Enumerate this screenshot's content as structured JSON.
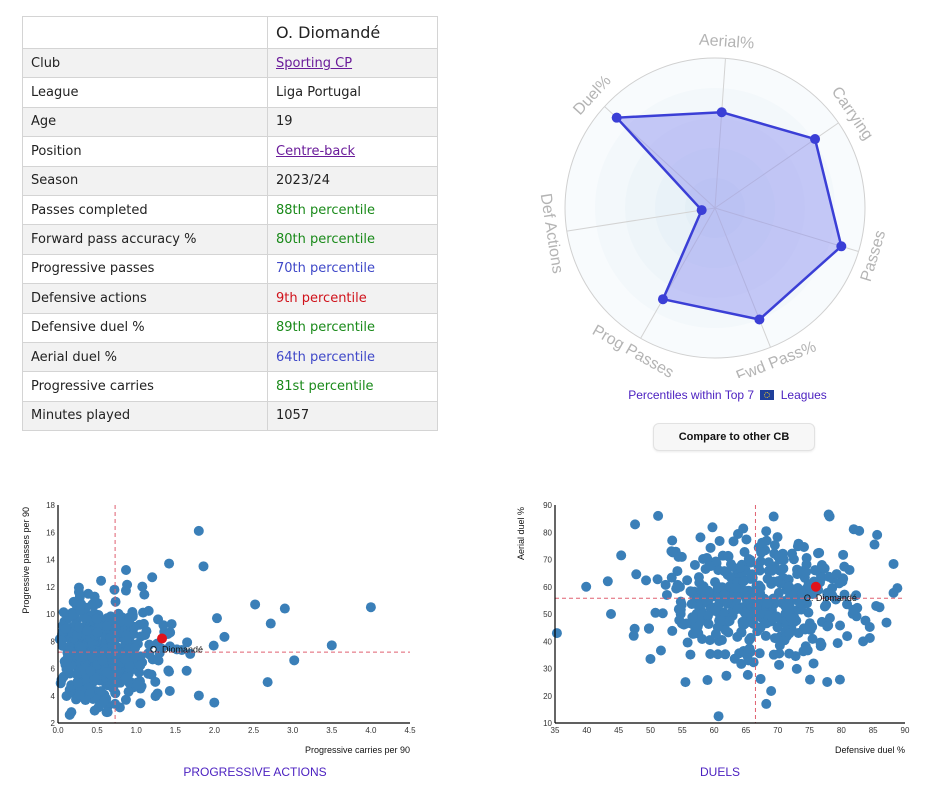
{
  "profile": {
    "player_name": "O. Diomandé",
    "rows": [
      {
        "label": "Club",
        "value": "Sporting CP",
        "type": "link",
        "color": ""
      },
      {
        "label": "League",
        "value": "Liga Portugal",
        "type": "text",
        "color": ""
      },
      {
        "label": "Age",
        "value": "19",
        "type": "text",
        "color": ""
      },
      {
        "label": "Position",
        "value": "Centre-back",
        "type": "link",
        "color": ""
      },
      {
        "label": "Season",
        "value": "2023/24",
        "type": "text",
        "color": ""
      },
      {
        "label": "Passes completed",
        "value": "88th percentile",
        "type": "text",
        "color": "#1a8a1a"
      },
      {
        "label": "Forward pass accuracy %",
        "value": "80th percentile",
        "type": "text",
        "color": "#1a8a1a"
      },
      {
        "label": "Progressive passes",
        "value": "70th percentile",
        "type": "text",
        "color": "#3f48c8"
      },
      {
        "label": "Defensive actions",
        "value": "9th percentile",
        "type": "text",
        "color": "#d0121b"
      },
      {
        "label": "Defensive duel %",
        "value": "89th percentile",
        "type": "text",
        "color": "#1a8a1a"
      },
      {
        "label": "Aerial duel %",
        "value": "64th percentile",
        "type": "text",
        "color": "#3f48c8"
      },
      {
        "label": "Progressive carries",
        "value": "81st percentile",
        "type": "text",
        "color": "#1a8a1a"
      },
      {
        "label": "Minutes played",
        "value": "1057",
        "type": "text",
        "color": ""
      }
    ]
  },
  "radar_caption": {
    "prefix": "Percentiles within Top 7",
    "flag": "eu-flag-icon",
    "suffix": "Leagues"
  },
  "compare_button": "Compare to other CB",
  "colors": {
    "radar_fill": "#8a8cf0",
    "radar_line": "#3b3fd6",
    "scatter_point": "#3a7fb8",
    "highlight_point": "#e0131b",
    "reference_line": "#e06070",
    "title": "#4a1fc0"
  },
  "chart_data": [
    {
      "type": "radar",
      "title": "",
      "axes": [
        "Aerial%",
        "Carrying",
        "Passes",
        "Fwd Pass%",
        "Prog Passes",
        "Def Actions",
        "Duel%"
      ],
      "values": [
        64,
        81,
        88,
        80,
        70,
        9,
        89
      ],
      "range": [
        0,
        100
      ],
      "caption": "Percentiles within Top 7 Leagues"
    },
    {
      "type": "scatter",
      "title": "PROGRESSIVE ACTIONS",
      "xlabel": "Progressive carries per 90",
      "ylabel": "Progressive passes per 90",
      "xlim": [
        0,
        4.5
      ],
      "ylim": [
        2,
        18
      ],
      "xticks": [
        "0.0",
        "0.5",
        "1.0",
        "1.5",
        "2.0",
        "2.5",
        "3.0",
        "3.5",
        "4.0",
        "4.5"
      ],
      "yticks": [
        "2",
        "4",
        "6",
        "8",
        "10",
        "12",
        "16",
        "14",
        "18"
      ],
      "reference_lines": {
        "x": 0.73,
        "y": 7.2
      },
      "highlight": {
        "name": "O. Diomandé",
        "x": 1.33,
        "y": 8.2
      },
      "notable_points": [
        {
          "x": 1.8,
          "y": 16.1
        },
        {
          "x": 4.0,
          "y": 10.5
        },
        {
          "x": 3.5,
          "y": 7.7
        },
        {
          "x": 3.02,
          "y": 6.6
        },
        {
          "x": 1.42,
          "y": 13.7
        },
        {
          "x": 1.86,
          "y": 13.5
        },
        {
          "x": 2.72,
          "y": 9.3
        },
        {
          "x": 2.9,
          "y": 10.4
        },
        {
          "x": 0.15,
          "y": 2.6
        },
        {
          "x": 0.73,
          "y": 3.4
        },
        {
          "x": 2.68,
          "y": 5.0
        },
        {
          "x": 2.52,
          "y": 10.7
        }
      ],
      "cloud": {
        "n": 480,
        "x_mean": 0.75,
        "x_sd": 0.5,
        "y_mean": 7.0,
        "y_sd": 2.0
      }
    },
    {
      "type": "scatter",
      "title": "DUELS",
      "xlabel": "Defensive duel %",
      "ylabel": "Aerial duel %",
      "xlim": [
        35,
        90
      ],
      "ylim": [
        10,
        90
      ],
      "xticks": [
        "35",
        "40",
        "45",
        "50",
        "55",
        "60",
        "65",
        "70",
        "75",
        "80",
        "85",
        "90"
      ],
      "yticks": [
        "10",
        "20",
        "30",
        "40",
        "50",
        "60",
        "70",
        "80",
        "90"
      ],
      "reference_lines": {
        "x": 66.5,
        "y": 55.8
      },
      "highlight": {
        "name": "O. Diomandé",
        "x": 76,
        "y": 60
      },
      "notable_points": [
        {
          "x": 35.3,
          "y": 43
        },
        {
          "x": 39.9,
          "y": 60
        },
        {
          "x": 43.3,
          "y": 62
        },
        {
          "x": 45.4,
          "y": 71.5
        },
        {
          "x": 51.2,
          "y": 86
        },
        {
          "x": 55.5,
          "y": 25
        },
        {
          "x": 60.7,
          "y": 12.5
        },
        {
          "x": 68.2,
          "y": 17
        },
        {
          "x": 78,
          "y": 86.5
        },
        {
          "x": 82.8,
          "y": 80.5
        },
        {
          "x": 88.8,
          "y": 59.5
        },
        {
          "x": 86,
          "y": 52.5
        },
        {
          "x": 43.8,
          "y": 50
        },
        {
          "x": 50,
          "y": 33.5
        }
      ],
      "cloud": {
        "n": 460,
        "x_mean": 66,
        "x_sd": 8.0,
        "y_mean": 55,
        "y_sd": 12.0
      }
    }
  ]
}
